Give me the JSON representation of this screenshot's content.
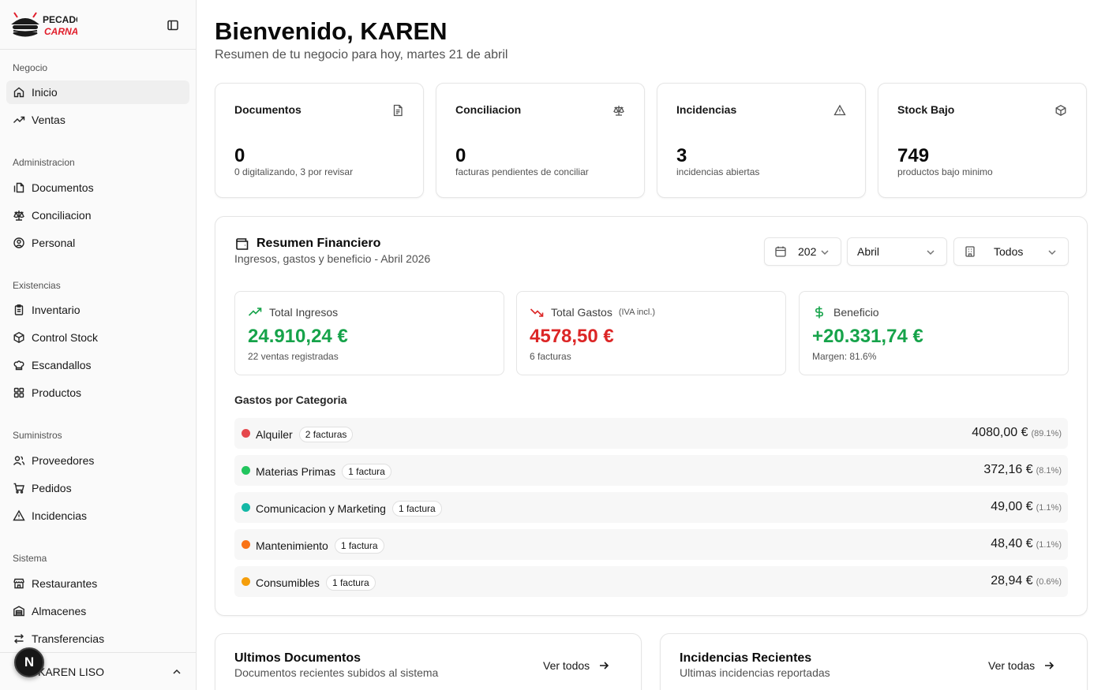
{
  "sidebar": {
    "logo_text": "PECADO CARNAL",
    "groups": [
      {
        "label": "Negocio",
        "items": [
          {
            "label": "Inicio",
            "icon": "home-icon"
          },
          {
            "label": "Ventas",
            "icon": "trending-up-icon"
          }
        ]
      },
      {
        "label": "Administracion",
        "items": [
          {
            "label": "Documentos",
            "icon": "files-icon"
          },
          {
            "label": "Conciliacion",
            "icon": "scale-icon"
          },
          {
            "label": "Personal",
            "icon": "user-circle-icon"
          }
        ]
      },
      {
        "label": "Existencias",
        "items": [
          {
            "label": "Inventario",
            "icon": "clipboard-icon"
          },
          {
            "label": "Control Stock",
            "icon": "package-icon"
          },
          {
            "label": "Escandallos",
            "icon": "chef-hat-icon"
          },
          {
            "label": "Productos",
            "icon": "grid-icon"
          }
        ]
      },
      {
        "label": "Suministros",
        "items": [
          {
            "label": "Proveedores",
            "icon": "users-icon"
          },
          {
            "label": "Pedidos",
            "icon": "cart-icon"
          },
          {
            "label": "Incidencias",
            "icon": "alert-triangle-icon"
          }
        ]
      },
      {
        "label": "Sistema",
        "items": [
          {
            "label": "Restaurantes",
            "icon": "store-icon"
          },
          {
            "label": "Almacenes",
            "icon": "warehouse-icon"
          },
          {
            "label": "Transferencias",
            "icon": "arrows-icon"
          }
        ]
      }
    ],
    "user_name": "KAREN LISO",
    "badge_letter": "N"
  },
  "header": {
    "title": "Bienvenido, KAREN",
    "subtitle": "Resumen de tu negocio para hoy, martes 21 de abril"
  },
  "stats": [
    {
      "title": "Documentos",
      "value": "0",
      "desc": "0 digitalizando, 3 por revisar",
      "icon": "file-text-icon"
    },
    {
      "title": "Conciliacion",
      "value": "0",
      "desc": "facturas pendientes de conciliar",
      "icon": "scale-icon"
    },
    {
      "title": "Incidencias",
      "value": "3",
      "desc": "incidencias abiertas",
      "icon": "alert-triangle-icon"
    },
    {
      "title": "Stock Bajo",
      "value": "749",
      "desc": "productos bajo minimo",
      "icon": "package-icon"
    }
  ],
  "finance": {
    "title": "Resumen Financiero",
    "subtitle": "Ingresos, gastos y beneficio - Abril 2026",
    "year_select": "202",
    "month_select": "Abril",
    "location_select": "Todos",
    "kpis": [
      {
        "label": "Total Ingresos",
        "extra": "",
        "value": "24.910,24 €",
        "desc": "22 ventas registradas",
        "color": "#16a34a"
      },
      {
        "label": "Total Gastos",
        "extra": "(IVA incl.)",
        "value": "4578,50 €",
        "desc": "6 facturas",
        "color": "#dc2626"
      },
      {
        "label": "Beneficio",
        "extra": "",
        "value": "+20.331,74 €",
        "desc": "Margen: 81.6%",
        "color": "#16a34a"
      }
    ],
    "categories_heading": "Gastos por Categoria",
    "categories": [
      {
        "name": "Alquiler",
        "badge": "2 facturas",
        "amount": "4080,00 €",
        "pct": "(89.1%)",
        "color": "#e5484d"
      },
      {
        "name": "Materias Primas",
        "badge": "1 factura",
        "amount": "372,16 €",
        "pct": "(8.1%)",
        "color": "#22c55e"
      },
      {
        "name": "Comunicacion y Marketing",
        "badge": "1 factura",
        "amount": "49,00 €",
        "pct": "(1.1%)",
        "color": "#14b8a6"
      },
      {
        "name": "Mantenimiento",
        "badge": "1 factura",
        "amount": "48,40 €",
        "pct": "(1.1%)",
        "color": "#f97316"
      },
      {
        "name": "Consumibles",
        "badge": "1 factura",
        "amount": "28,94 €",
        "pct": "(0.6%)",
        "color": "#f59e0b"
      }
    ]
  },
  "recent_docs": {
    "title": "Ultimos Documentos",
    "subtitle": "Documentos recientes subidos al sistema",
    "link": "Ver todos"
  },
  "recent_incidents": {
    "title": "Incidencias Recientes",
    "subtitle": "Ultimas incidencias reportadas",
    "link": "Ver todas"
  }
}
